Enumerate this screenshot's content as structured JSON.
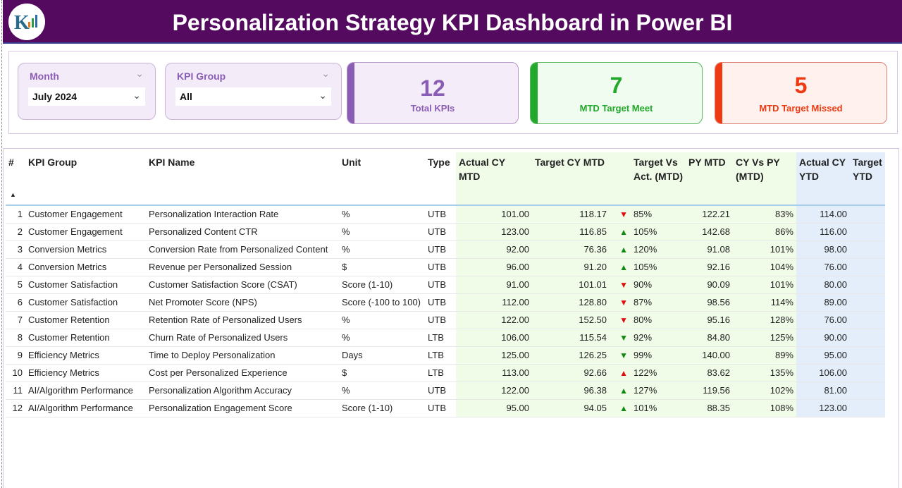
{
  "header": {
    "title": "Personalization Strategy KPI Dashboard in Power BI"
  },
  "filters": {
    "month_label": "Month",
    "month_value": "July 2024",
    "group_label": "KPI Group",
    "group_value": "All"
  },
  "cards": [
    {
      "value": "12",
      "label": "Total KPIs",
      "color": "#8a5db5"
    },
    {
      "value": "7",
      "label": "MTD Target Meet",
      "color": "#22a82a"
    },
    {
      "value": "5",
      "label": "MTD Target Missed",
      "color": "#ee3a12"
    }
  ],
  "table": {
    "columns": [
      "#",
      "KPI Group",
      "KPI Name",
      "Unit",
      "Type",
      "Actual CY MTD",
      "Target CY MTD",
      "",
      "Target Vs Act. (MTD)",
      "PY MTD",
      "CY Vs PY (MTD)",
      "Actual CY YTD",
      "Target YTD"
    ],
    "rows": [
      {
        "n": "1",
        "group": "Customer Engagement",
        "name": "Personalization Interaction Rate",
        "unit": "%",
        "type": "UTB",
        "act": "101.00",
        "tgt": "118.17",
        "icon": "down",
        "color": "#e01010",
        "tva": "85%",
        "py": "122.21",
        "cvp": "83%",
        "ytd": "114.00"
      },
      {
        "n": "2",
        "group": "Customer Engagement",
        "name": "Personalized Content CTR",
        "unit": "%",
        "type": "UTB",
        "act": "123.00",
        "tgt": "116.85",
        "icon": "up",
        "color": "#108a10",
        "tva": "105%",
        "py": "142.68",
        "cvp": "86%",
        "ytd": "116.00"
      },
      {
        "n": "3",
        "group": "Conversion Metrics",
        "name": "Conversion Rate from Personalized Content",
        "unit": "%",
        "type": "UTB",
        "act": "92.00",
        "tgt": "76.36",
        "icon": "up",
        "color": "#108a10",
        "tva": "120%",
        "py": "91.08",
        "cvp": "101%",
        "ytd": "98.00"
      },
      {
        "n": "4",
        "group": "Conversion Metrics",
        "name": "Revenue per Personalized Session",
        "unit": "$",
        "type": "UTB",
        "act": "96.00",
        "tgt": "91.20",
        "icon": "up",
        "color": "#108a10",
        "tva": "105%",
        "py": "92.16",
        "cvp": "104%",
        "ytd": "76.00"
      },
      {
        "n": "5",
        "group": "Customer Satisfaction",
        "name": "Customer Satisfaction Score (CSAT)",
        "unit": "Score (1-10)",
        "type": "UTB",
        "act": "91.00",
        "tgt": "101.01",
        "icon": "down",
        "color": "#e01010",
        "tva": "90%",
        "py": "90.09",
        "cvp": "101%",
        "ytd": "80.00"
      },
      {
        "n": "6",
        "group": "Customer Satisfaction",
        "name": "Net Promoter Score (NPS)",
        "unit": "Score (-100 to 100)",
        "type": "UTB",
        "act": "112.00",
        "tgt": "128.80",
        "icon": "down",
        "color": "#e01010",
        "tva": "87%",
        "py": "98.56",
        "cvp": "114%",
        "ytd": "89.00"
      },
      {
        "n": "7",
        "group": "Customer Retention",
        "name": "Retention Rate of Personalized Users",
        "unit": "%",
        "type": "UTB",
        "act": "122.00",
        "tgt": "152.50",
        "icon": "down",
        "color": "#e01010",
        "tva": "80%",
        "py": "95.16",
        "cvp": "128%",
        "ytd": "76.00"
      },
      {
        "n": "8",
        "group": "Customer Retention",
        "name": "Churn Rate of Personalized Users",
        "unit": "%",
        "type": "LTB",
        "act": "106.00",
        "tgt": "115.54",
        "icon": "down",
        "color": "#108a10",
        "tva": "92%",
        "py": "84.80",
        "cvp": "125%",
        "ytd": "90.00"
      },
      {
        "n": "9",
        "group": "Efficiency Metrics",
        "name": "Time to Deploy Personalization",
        "unit": "Days",
        "type": "LTB",
        "act": "125.00",
        "tgt": "126.25",
        "icon": "down",
        "color": "#108a10",
        "tva": "99%",
        "py": "140.00",
        "cvp": "89%",
        "ytd": "95.00"
      },
      {
        "n": "10",
        "group": "Efficiency Metrics",
        "name": "Cost per Personalized Experience",
        "unit": "$",
        "type": "LTB",
        "act": "113.00",
        "tgt": "92.66",
        "icon": "up",
        "color": "#e01010",
        "tva": "122%",
        "py": "83.62",
        "cvp": "135%",
        "ytd": "106.00"
      },
      {
        "n": "11",
        "group": "AI/Algorithm Performance",
        "name": "Personalization Algorithm Accuracy",
        "unit": "%",
        "type": "UTB",
        "act": "122.00",
        "tgt": "96.38",
        "icon": "up",
        "color": "#108a10",
        "tva": "127%",
        "py": "119.56",
        "cvp": "102%",
        "ytd": "81.00"
      },
      {
        "n": "12",
        "group": "AI/Algorithm Performance",
        "name": "Personalization Engagement Score",
        "unit": "Score (1-10)",
        "type": "UTB",
        "act": "95.00",
        "tgt": "94.05",
        "icon": "up",
        "color": "#108a10",
        "tva": "101%",
        "py": "88.35",
        "cvp": "108%",
        "ytd": "123.00"
      }
    ]
  }
}
